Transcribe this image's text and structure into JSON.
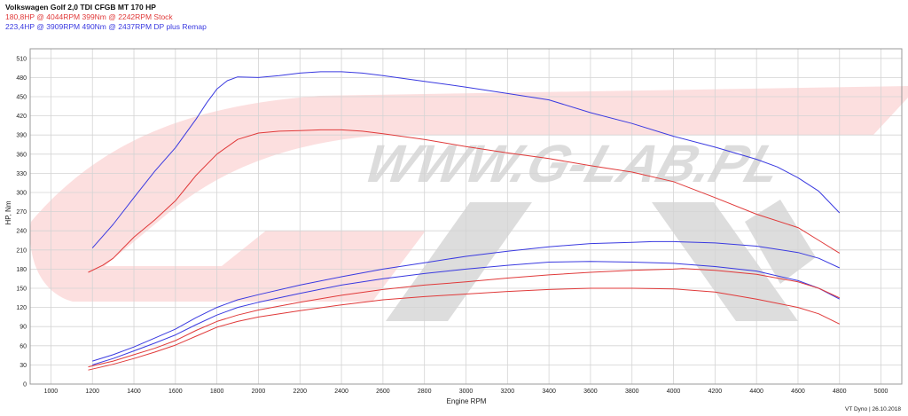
{
  "header": {
    "title": "Volkswagen Golf 2,0 TDI CFGB MT 170 HP",
    "stock": {
      "hp": "180,8HP @",
      "hp_rpm": "4044RPM",
      "nm": "399Nm @ 2242RPM",
      "label": "Stock"
    },
    "remap": {
      "hp": "223,4HP @",
      "hp_rpm": "3909RPM",
      "nm": "490Nm @ 2437RPM",
      "label": "DP plus Remap"
    }
  },
  "watermark": {
    "text": "WWW.G-LAB.PL"
  },
  "footer": {
    "text": "VT Dyno | 26.10.2018"
  },
  "colors": {
    "stock": "#e03a3a",
    "remap": "#3a3ae0",
    "grid": "#d4d4d4",
    "watermark_red": "#fbd9d9",
    "watermark_grey": "#d9d9d9"
  },
  "chart_data": {
    "type": "line",
    "xlabel": "Engine RPM",
    "ylabel": "HP, Nm",
    "xlim": [
      900,
      5100
    ],
    "ylim": [
      0,
      525
    ],
    "xticks": [
      1000,
      1200,
      1400,
      1600,
      1800,
      2000,
      2200,
      2400,
      2600,
      2800,
      3000,
      3200,
      3400,
      3600,
      3800,
      4000,
      4200,
      4400,
      4600,
      4800,
      5000
    ],
    "yticks": [
      0,
      30,
      60,
      90,
      120,
      150,
      180,
      210,
      240,
      270,
      300,
      330,
      360,
      390,
      420,
      450,
      480,
      510
    ],
    "grid": true,
    "series": [
      {
        "group": "remap",
        "kind": "torque",
        "x": [
          1200,
          1300,
          1400,
          1500,
          1600,
          1700,
          1750,
          1800,
          1850,
          1900,
          2000,
          2100,
          2200,
          2300,
          2400,
          2500,
          2600,
          2800,
          3000,
          3200,
          3400,
          3600,
          3800,
          4000,
          4200,
          4400,
          4500,
          4600,
          4700,
          4800
        ],
        "y": [
          213,
          250,
          292,
          333,
          370,
          415,
          440,
          462,
          475,
          481,
          480,
          483,
          487,
          489,
          489,
          487,
          483,
          474,
          465,
          455,
          445,
          425,
          408,
          388,
          371,
          352,
          340,
          323,
          302,
          268
        ]
      },
      {
        "group": "stock",
        "kind": "torque",
        "x": [
          1180,
          1250,
          1300,
          1400,
          1500,
          1600,
          1650,
          1700,
          1800,
          1900,
          2000,
          2100,
          2200,
          2300,
          2400,
          2500,
          2600,
          2800,
          3000,
          3200,
          3400,
          3600,
          3800,
          4000,
          4200,
          4400,
          4600,
          4700,
          4800
        ],
        "y": [
          175,
          186,
          197,
          230,
          257,
          287,
          307,
          327,
          360,
          383,
          393,
          396,
          397,
          398,
          398,
          396,
          392,
          383,
          372,
          362,
          353,
          342,
          332,
          317,
          292,
          266,
          245,
          225,
          205
        ]
      },
      {
        "group": "remap",
        "kind": "power",
        "x": [
          1200,
          1300,
          1400,
          1500,
          1600,
          1700,
          1800,
          1900,
          2000,
          2200,
          2400,
          2600,
          2800,
          3000,
          3200,
          3400,
          3600,
          3800,
          3900,
          4000,
          4200,
          4400,
          4600,
          4700,
          4800
        ],
        "y": [
          36,
          46,
          58,
          72,
          86,
          104,
          120,
          132,
          140,
          155,
          168,
          180,
          190,
          200,
          208,
          215,
          220,
          222,
          223,
          223,
          221,
          216,
          206,
          197,
          182
        ]
      },
      {
        "group": "remap",
        "kind": "wheel_power",
        "x": [
          1200,
          1300,
          1400,
          1500,
          1600,
          1700,
          1800,
          1900,
          2000,
          2200,
          2400,
          2600,
          2800,
          3000,
          3200,
          3400,
          3600,
          3800,
          4000,
          4200,
          4400,
          4600,
          4700,
          4800
        ],
        "y": [
          30,
          40,
          52,
          64,
          77,
          93,
          108,
          120,
          128,
          142,
          155,
          165,
          173,
          180,
          186,
          191,
          192,
          191,
          189,
          184,
          177,
          162,
          150,
          133
        ]
      },
      {
        "group": "stock",
        "kind": "power",
        "x": [
          1180,
          1300,
          1400,
          1500,
          1600,
          1700,
          1800,
          1900,
          2000,
          2200,
          2400,
          2600,
          2800,
          3000,
          3200,
          3400,
          3600,
          3800,
          4000,
          4044,
          4200,
          4400,
          4600,
          4700,
          4800
        ],
        "y": [
          27,
          36,
          46,
          56,
          68,
          84,
          98,
          108,
          116,
          128,
          139,
          148,
          155,
          160,
          166,
          171,
          175,
          178,
          180,
          181,
          178,
          172,
          160,
          150,
          135
        ]
      },
      {
        "group": "stock",
        "kind": "wheel_power",
        "x": [
          1180,
          1300,
          1400,
          1500,
          1600,
          1700,
          1800,
          1900,
          2000,
          2200,
          2400,
          2600,
          2800,
          3000,
          3200,
          3400,
          3600,
          3800,
          4000,
          4200,
          4400,
          4600,
          4700,
          4800
        ],
        "y": [
          22,
          31,
          40,
          50,
          61,
          75,
          89,
          98,
          105,
          115,
          124,
          132,
          137,
          141,
          145,
          148,
          150,
          150,
          149,
          144,
          133,
          120,
          110,
          94
        ]
      }
    ]
  }
}
